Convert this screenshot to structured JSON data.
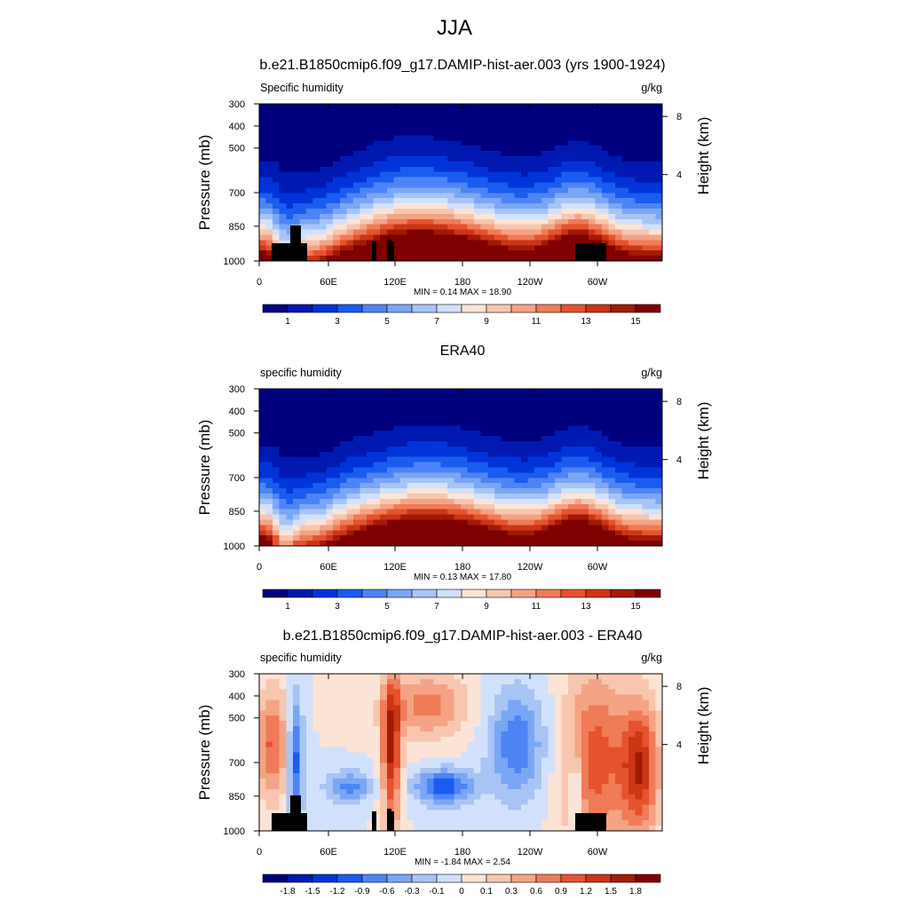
{
  "figure_title": "JJA",
  "chart_data": [
    {
      "type": "heatmap",
      "title": "b.e21.B1850cmip6.f09_g17.DAMIP-hist-aer.003 (yrs 1900-1924)",
      "variable_label": "Specific humidity",
      "units": "g/kg",
      "ylabel": "Pressure (mb)",
      "y2label": "Height (km)",
      "x_ticks": [
        "0",
        "60E",
        "120E",
        "180",
        "120W",
        "60W"
      ],
      "y_ticks": [
        "300",
        "400",
        "500",
        "700",
        "850",
        "1000"
      ],
      "y2_ticks": [
        "8",
        "4"
      ],
      "stats": "MIN =   0.14  MAX =  18.90",
      "min": 0.14,
      "max": 18.9,
      "colorbar_labels": [
        "1",
        "3",
        "5",
        "7",
        "9",
        "11",
        "13",
        "15"
      ],
      "colorbar_colors": [
        "#00007f",
        "#0019b0",
        "#0034d9",
        "#1a5cf0",
        "#4d84f5",
        "#7aa6f5",
        "#a8c4f5",
        "#d2e1fb",
        "#fbe4d6",
        "#f8c6ae",
        "#f4a384",
        "#ef7b57",
        "#e5532e",
        "#cc3516",
        "#a21a06",
        "#7f0000"
      ],
      "terrain": "shown",
      "field": "moist-absolute"
    },
    {
      "type": "heatmap",
      "title": "ERA40",
      "variable_label": "specific humidity",
      "units": "g/kg",
      "ylabel": "Pressure (mb)",
      "y2label": "Height (km)",
      "x_ticks": [
        "0",
        "60E",
        "120E",
        "180",
        "120W",
        "60W"
      ],
      "y_ticks": [
        "300",
        "400",
        "500",
        "700",
        "850",
        "1000"
      ],
      "y2_ticks": [
        "8",
        "4"
      ],
      "stats": "MIN =   0.13  MAX =  17.80",
      "min": 0.13,
      "max": 17.8,
      "colorbar_labels": [
        "1",
        "3",
        "5",
        "7",
        "9",
        "11",
        "13",
        "15"
      ],
      "colorbar_colors": [
        "#00007f",
        "#0019b0",
        "#0034d9",
        "#1a5cf0",
        "#4d84f5",
        "#7aa6f5",
        "#a8c4f5",
        "#d2e1fb",
        "#fbe4d6",
        "#f8c6ae",
        "#f4a384",
        "#ef7b57",
        "#e5532e",
        "#cc3516",
        "#a21a06",
        "#7f0000"
      ],
      "terrain": "none",
      "field": "moist-absolute"
    },
    {
      "type": "heatmap",
      "title": "b.e21.B1850cmip6.f09_g17.DAMIP-hist-aer.003 - ERA40",
      "variable_label": "specific humidity",
      "units": "g/kg",
      "ylabel": "Pressure (mb)",
      "y2label": "Height (km)",
      "x_ticks": [
        "0",
        "60E",
        "120E",
        "180",
        "120W",
        "60W"
      ],
      "y_ticks": [
        "300",
        "400",
        "500",
        "700",
        "850",
        "1000"
      ],
      "y2_ticks": [
        "8",
        "4"
      ],
      "stats": "MIN =  -1.84  MAX =   2.54",
      "min": -1.84,
      "max": 2.54,
      "colorbar_labels": [
        "-1.8",
        "-1.5",
        "-1.2",
        "-0.9",
        "-0.6",
        "-0.3",
        "-0.1",
        "0",
        "0.1",
        "0.3",
        "0.6",
        "0.9",
        "1.2",
        "1.5",
        "1.8"
      ],
      "colorbar_colors": [
        "#00007f",
        "#0019b0",
        "#0034d9",
        "#1a5cf0",
        "#4d84f5",
        "#7aa6f5",
        "#a8c4f5",
        "#d2e1fb",
        "#fbe4d6",
        "#f8c6ae",
        "#f4a384",
        "#ef7b57",
        "#e5532e",
        "#cc3516",
        "#a21a06",
        "#7f0000"
      ],
      "terrain": "shown",
      "field": "difference"
    }
  ]
}
